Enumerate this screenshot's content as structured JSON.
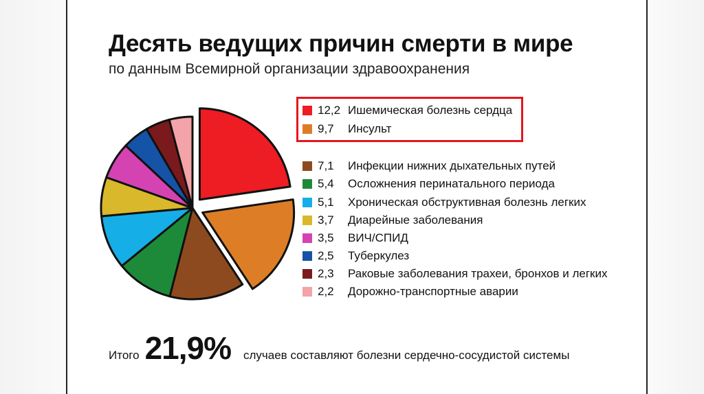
{
  "chart_data": {
    "type": "pie",
    "title": "Десять ведущих причин смерти в мире",
    "subtitle": "по данным Всемирной организации здравоохранения",
    "slices": [
      {
        "value": "12,2",
        "num": 12.2,
        "label": "Ишемическая болезнь сердца",
        "color": "#ee1c23",
        "exploded": true
      },
      {
        "value": "9,7",
        "num": 9.7,
        "label": "Инсульт",
        "color": "#dd7e27",
        "exploded": true
      },
      {
        "value": "7,1",
        "num": 7.1,
        "label": "Инфекции нижних дыхательных путей",
        "color": "#8e4a1f",
        "exploded": false
      },
      {
        "value": "5,4",
        "num": 5.4,
        "label": "Осложнения перинатального периода",
        "color": "#1d8a3a",
        "exploded": false
      },
      {
        "value": "5,1",
        "num": 5.1,
        "label": "Хроническая обструктивная болезнь легких",
        "color": "#16aee7",
        "exploded": false
      },
      {
        "value": "3,7",
        "num": 3.7,
        "label": "Диарейные заболевания",
        "color": "#d9b92b",
        "exploded": false
      },
      {
        "value": "3,5",
        "num": 3.5,
        "label": "ВИЧ/СПИД",
        "color": "#d543b3",
        "exploded": false
      },
      {
        "value": "2,5",
        "num": 2.5,
        "label": "Туберкулез",
        "color": "#1553a6",
        "exploded": false
      },
      {
        "value": "2,3",
        "num": 2.3,
        "label": "Раковые заболевания трахеи, бронхов и легких",
        "color": "#7a1a1c",
        "exploded": false
      },
      {
        "value": "2,2",
        "num": 2.2,
        "label": "Дорожно-транспортные аварии",
        "color": "#f4a3a8",
        "exploded": false
      }
    ],
    "highlighted": [
      "Ишемическая болезнь сердца",
      "Инсульт"
    ],
    "highlight_color": "#e6141e"
  },
  "summary": {
    "prefix": "Итого",
    "value": "21,9%",
    "suffix": "случаев составляют болезни сердечно-сосудистой системы"
  }
}
